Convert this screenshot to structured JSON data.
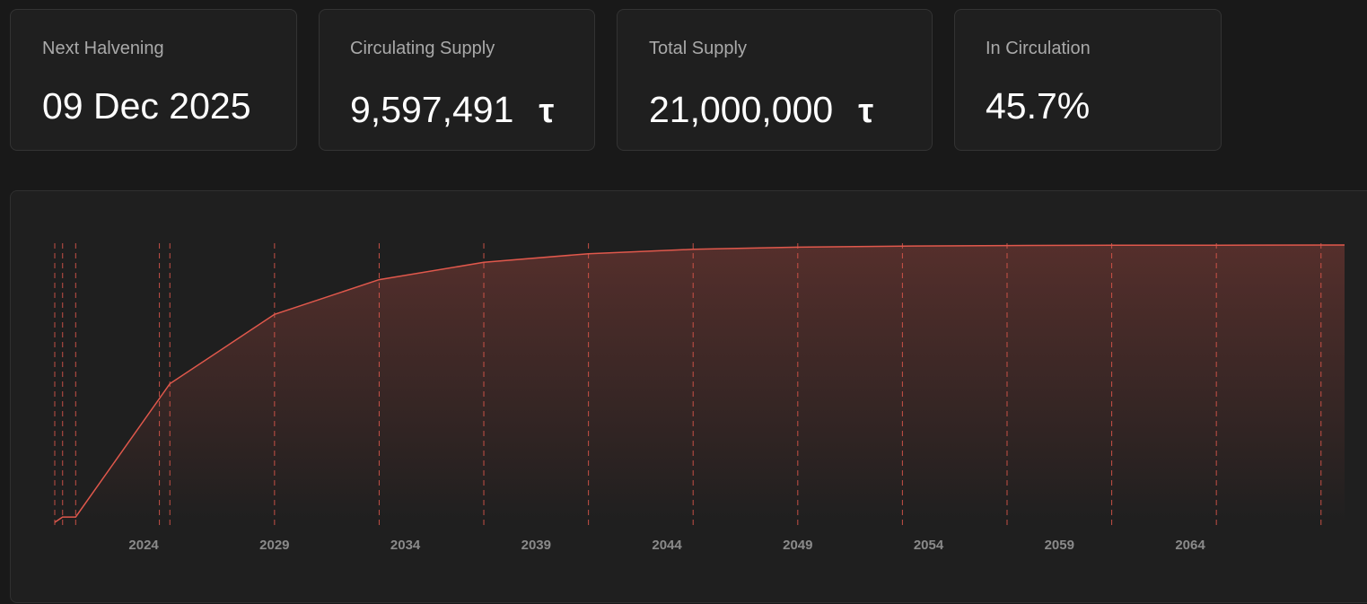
{
  "stats": {
    "next_halvening": {
      "label": "Next Halvening",
      "value": "09 Dec 2025"
    },
    "circulating_supply": {
      "label": "Circulating Supply",
      "value": "9,597,491",
      "unit": "τ"
    },
    "total_supply": {
      "label": "Total Supply",
      "value": "21,000,000",
      "unit": "τ"
    },
    "in_circulation": {
      "label": "In Circulation",
      "value": "45.7%"
    }
  },
  "colors": {
    "accent": "#e0584c",
    "card_bg": "#1f1f1f",
    "page_bg": "#191919"
  },
  "chart_data": {
    "type": "area",
    "title": "",
    "xlabel": "",
    "ylabel": "",
    "x_ticks": [
      "2024",
      "2029",
      "2034",
      "2039",
      "2044",
      "2049",
      "2054",
      "2059",
      "2064"
    ],
    "xlim": [
      2020.6,
      2069.9
    ],
    "ylim": [
      0,
      21000000
    ],
    "halving_markers": [
      2020.6,
      2020.9,
      2021.4,
      2024.6,
      2025.0,
      2029.0,
      2033.0,
      2037.0,
      2041.0,
      2045.0,
      2049.0,
      2053.0,
      2057.0,
      2061.0,
      2065.0,
      2069.0
    ],
    "series": [
      {
        "x": [
          2020.6,
          2020.9,
          2021.4,
          2025.0,
          2029.0,
          2033.0,
          2037.0,
          2041.0,
          2045.0,
          2049.0,
          2053.0,
          2057.0,
          2061.0,
          2065.0,
          2069.9
        ],
        "values": [
          0,
          400000,
          400000,
          10500000,
          15750000,
          18375000,
          19687500,
          20343750,
          20671875,
          20835937,
          20917968,
          20958984,
          20979492,
          20989746,
          21000000
        ]
      }
    ],
    "grid": false,
    "legend": "none"
  }
}
